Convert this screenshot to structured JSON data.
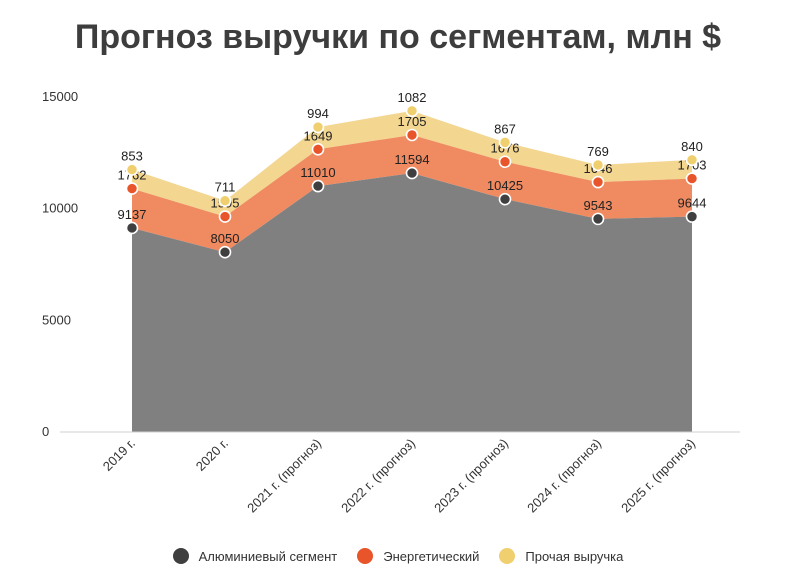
{
  "chart_data": {
    "type": "area",
    "stacked": true,
    "title": "Прогноз выручки по сегментам, млн $",
    "categories": [
      "2019 г.",
      "2020 г.",
      "2021 г. (прогноз)",
      "2022 г. (прогноз)",
      "2023 г. (прогноз)",
      "2024 г. (прогноз)",
      "2025 г. (прогноз)"
    ],
    "ylim": [
      0,
      15000
    ],
    "yticks": [
      "0",
      "5000",
      "10000",
      "15000"
    ],
    "series": [
      {
        "name": "Алюминиевый сегмент",
        "color": "#808080",
        "marker": "#3f3f3f",
        "values": [
          9137,
          8050,
          11010,
          11594,
          10425,
          9543,
          9644
        ]
      },
      {
        "name": "Энергетический",
        "color": "#f08a60",
        "marker": "#e8552b",
        "values": [
          1762,
          1595,
          1649,
          1705,
          1676,
          1646,
          1703
        ]
      },
      {
        "name": "Прочая выручка",
        "color": "#f3d690",
        "marker": "#f0cf6e",
        "values": [
          853,
          711,
          994,
          1082,
          867,
          769,
          840
        ]
      }
    ],
    "legend_position": "bottom",
    "grid": false
  }
}
